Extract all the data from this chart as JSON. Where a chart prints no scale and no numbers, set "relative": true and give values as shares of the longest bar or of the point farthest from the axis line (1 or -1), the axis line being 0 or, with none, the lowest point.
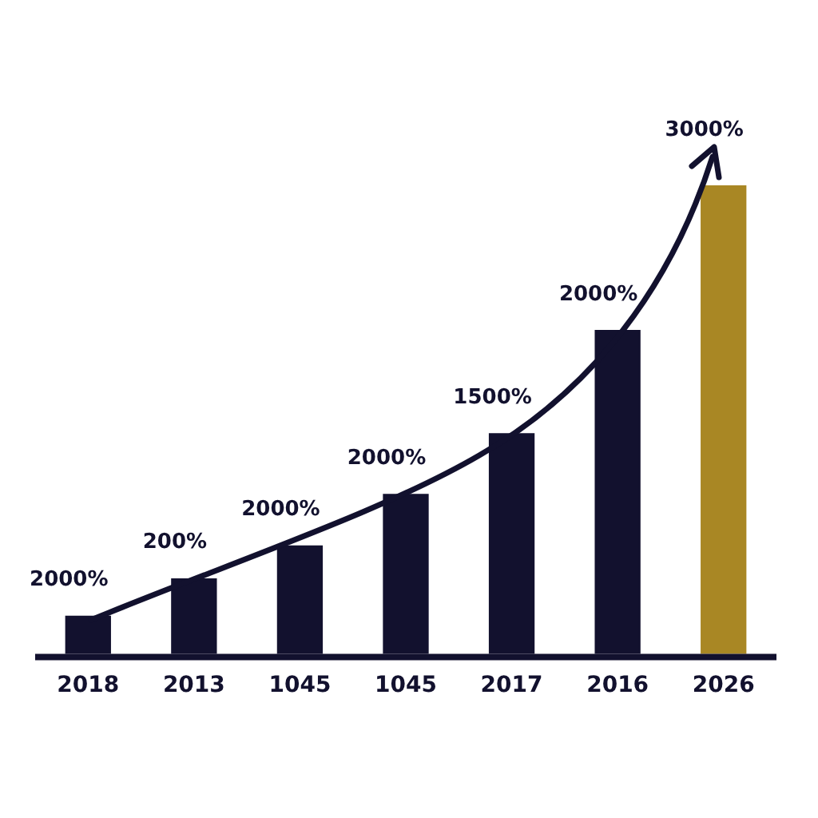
{
  "chart_data": {
    "type": "bar",
    "relative": true,
    "categories": [
      "2018",
      "2013",
      "1045",
      "1045",
      "2017",
      "2016",
      "2026"
    ],
    "values": [
      0.08,
      0.16,
      0.23,
      0.34,
      0.47,
      0.69,
      1
    ],
    "colors": [
      "#12112e",
      "#12112e",
      "#12112e",
      "#12112e",
      "#12112e",
      "#12112e",
      "#a98724"
    ],
    "annotations": [
      "2000%",
      "200%",
      "2000%",
      "2000%",
      "1500%",
      "2000%",
      "3000%"
    ],
    "grid": false,
    "legend": false
  }
}
